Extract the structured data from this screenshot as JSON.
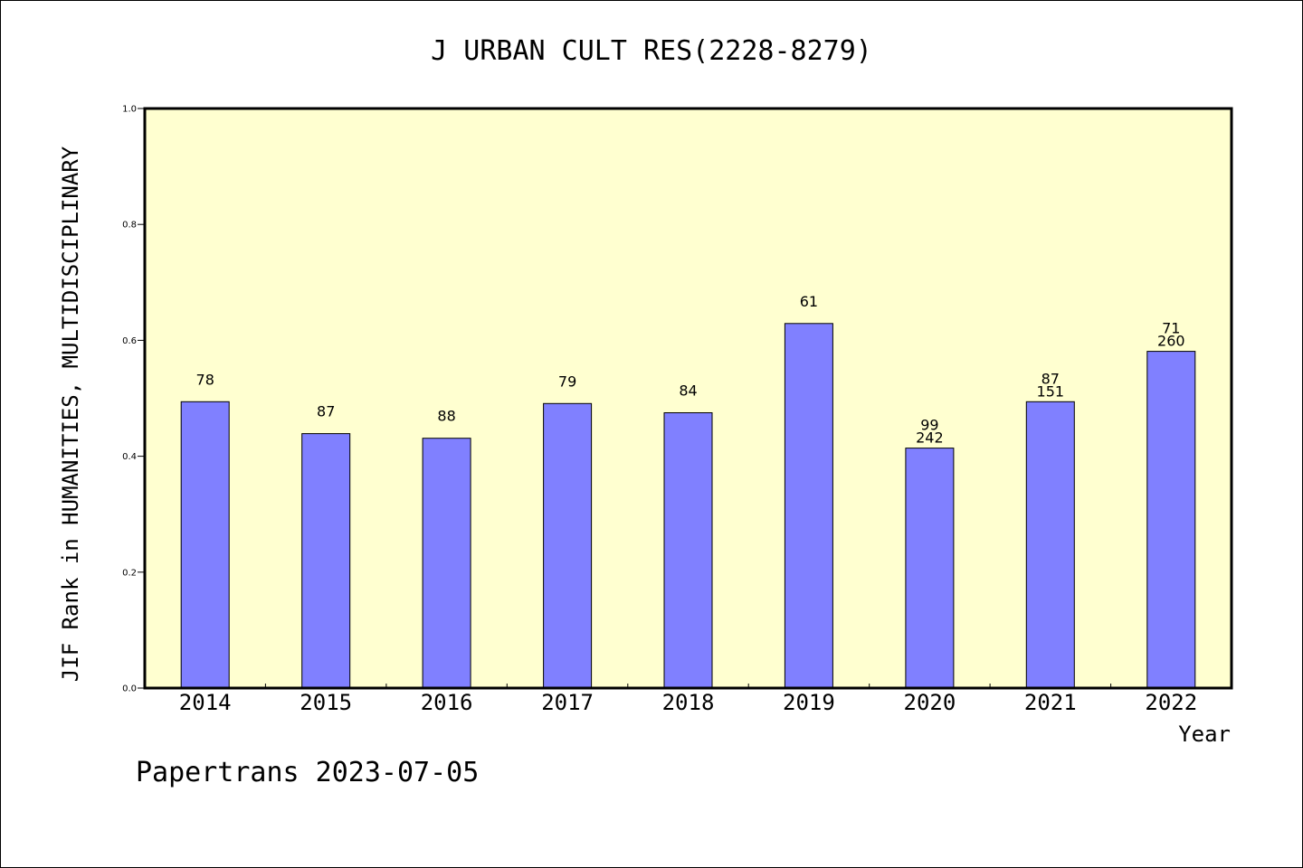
{
  "chart_data": {
    "type": "bar",
    "title": "J URBAN CULT RES(2228-8279)",
    "xlabel": "Year",
    "ylabel": "JIF Rank in HUMANITIES, MULTIDISCIPLINARY",
    "ylim": [
      0,
      1.0
    ],
    "yticks": [
      "0.0",
      "0.2",
      "0.4",
      "0.6",
      "0.8",
      "1.0"
    ],
    "categories": [
      "2014",
      "2015",
      "2016",
      "2017",
      "2018",
      "2019",
      "2020",
      "2021",
      "2022"
    ],
    "values": [
      0.494,
      0.439,
      0.431,
      0.491,
      0.475,
      0.629,
      0.414,
      0.494,
      0.581
    ],
    "bar_labels": [
      [
        "78"
      ],
      [
        "87"
      ],
      [
        "88"
      ],
      [
        "79"
      ],
      [
        "84"
      ],
      [
        "61"
      ],
      [
        "99",
        "242"
      ],
      [
        "87",
        "151"
      ],
      [
        "71",
        "260"
      ]
    ],
    "bar_color": "#8080ff",
    "plot_background": "#ffffd0",
    "grid": false
  },
  "footer": "Papertrans 2023-07-05"
}
